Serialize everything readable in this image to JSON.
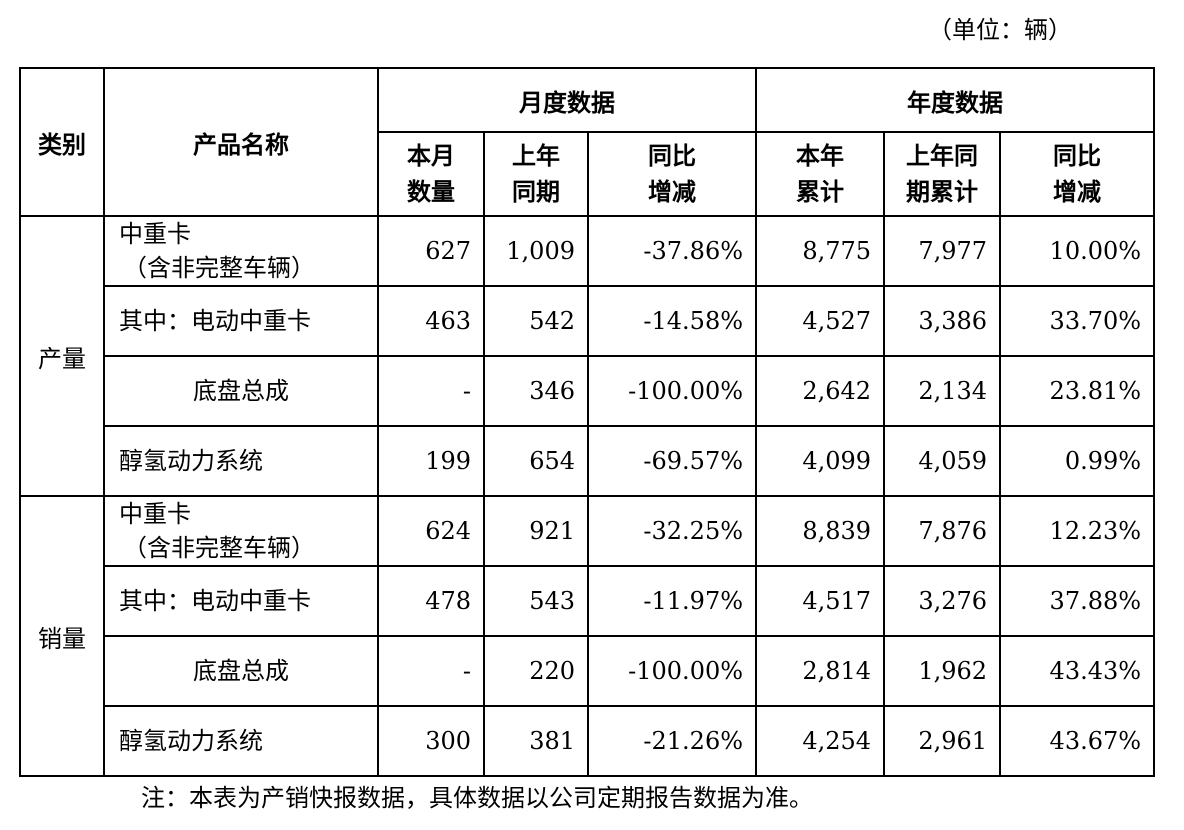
{
  "unit_label": "（单位：辆）",
  "table": {
    "headers": {
      "category": "类别",
      "product_name": "产品名称",
      "monthly_group": "月度数据",
      "annual_group": "年度数据",
      "monthly_cols": [
        [
          "本月",
          "数量"
        ],
        [
          "上年",
          "同期"
        ],
        [
          "同比",
          "增减"
        ]
      ],
      "annual_cols": [
        [
          "本年",
          "累计"
        ],
        [
          "上年同",
          "期累计"
        ],
        [
          "同比",
          "增减"
        ]
      ]
    },
    "sections": [
      {
        "category": "产量",
        "rows": [
          {
            "name": "中重卡",
            "name_sub": "（含非完整车辆）",
            "indent": false,
            "values": [
              "627",
              "1,009",
              "-37.86%",
              "8,775",
              "7,977",
              "10.00%"
            ]
          },
          {
            "name": "其中：电动中重卡",
            "name_sub": "",
            "indent": false,
            "values": [
              "463",
              "542",
              "-14.58%",
              "4,527",
              "3,386",
              "33.70%"
            ]
          },
          {
            "name": "底盘总成",
            "name_sub": "",
            "indent": true,
            "values": [
              "-",
              "346",
              "-100.00%",
              "2,642",
              "2,134",
              "23.81%"
            ]
          },
          {
            "name": "醇氢动力系统",
            "name_sub": "",
            "indent": false,
            "values": [
              "199",
              "654",
              "-69.57%",
              "4,099",
              "4,059",
              "0.99%"
            ]
          }
        ]
      },
      {
        "category": "销量",
        "rows": [
          {
            "name": "中重卡",
            "name_sub": "（含非完整车辆）",
            "indent": false,
            "values": [
              "624",
              "921",
              "-32.25%",
              "8,839",
              "7,876",
              "12.23%"
            ]
          },
          {
            "name": "其中：电动中重卡",
            "name_sub": "",
            "indent": false,
            "values": [
              "478",
              "543",
              "-11.97%",
              "4,517",
              "3,276",
              "37.88%"
            ]
          },
          {
            "name": "底盘总成",
            "name_sub": "",
            "indent": true,
            "values": [
              "-",
              "220",
              "-100.00%",
              "2,814",
              "1,962",
              "43.43%"
            ]
          },
          {
            "name": "醇氢动力系统",
            "name_sub": "",
            "indent": false,
            "values": [
              "300",
              "381",
              "-21.26%",
              "4,254",
              "2,961",
              "43.67%"
            ]
          }
        ]
      }
    ]
  },
  "note": "注：本表为产销快报数据，具体数据以公司定期报告数据为准。"
}
